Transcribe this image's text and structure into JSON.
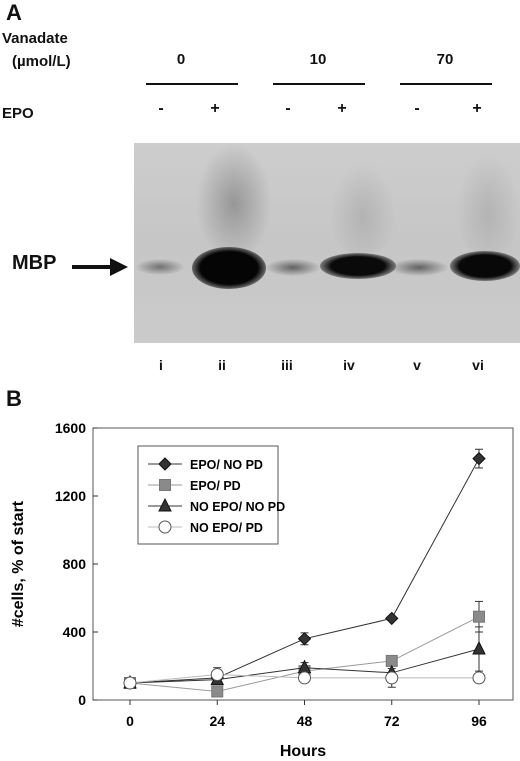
{
  "panel_a": {
    "letter": "A",
    "vanadate_label": "Vanadate",
    "vanadate_unit": "(µmol/L)",
    "epo_label": "EPO",
    "concentrations": [
      "0",
      "10",
      "70"
    ],
    "epo_signs": [
      "-",
      "+",
      "-",
      "+",
      "-",
      "+"
    ],
    "mbp_label": "MBP",
    "arrow_icon": "right-arrow-icon",
    "lanes": [
      "i",
      "ii",
      "iii",
      "iv",
      "v",
      "vi"
    ],
    "band_intensity": [
      "weak",
      "strong",
      "weak",
      "strong",
      "weak",
      "strong"
    ]
  },
  "chart_data": {
    "type": "line",
    "panel_letter": "B",
    "title": "",
    "xlabel": "Hours",
    "ylabel": "#cells, % of start",
    "x": [
      0,
      24,
      48,
      72,
      96
    ],
    "xlim": [
      0,
      96
    ],
    "ylim": [
      0,
      1600
    ],
    "yticks": [
      0,
      400,
      800,
      1200,
      1600
    ],
    "legend_position": "top-left",
    "grid": false,
    "series": [
      {
        "name": "EPO/ NO PD",
        "marker": "diamond",
        "color": "#333333",
        "values": [
          100,
          130,
          360,
          480,
          1420
        ],
        "errors": [
          0,
          0,
          35,
          0,
          55
        ]
      },
      {
        "name": "EPO/ PD",
        "marker": "square",
        "color": "#8a8a8a",
        "values": [
          100,
          50,
          170,
          230,
          490
        ],
        "errors": [
          0,
          0,
          0,
          0,
          90
        ]
      },
      {
        "name": "NO EPO/ NO PD",
        "marker": "triangle",
        "color": "#333333",
        "values": [
          100,
          120,
          190,
          160,
          300
        ],
        "errors": [
          0,
          0,
          30,
          0,
          130
        ]
      },
      {
        "name": "NO EPO/ PD",
        "marker": "circle",
        "color": "#ffffff",
        "values": [
          100,
          150,
          130,
          130,
          130
        ],
        "errors": [
          0,
          40,
          0,
          55,
          0
        ]
      }
    ]
  }
}
